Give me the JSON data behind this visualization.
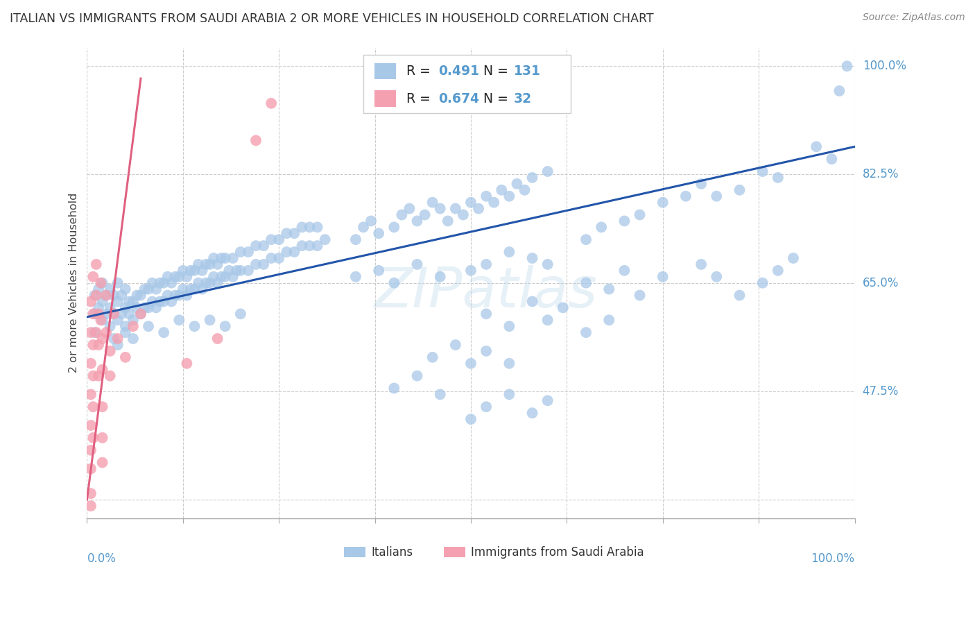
{
  "title": "ITALIAN VS IMMIGRANTS FROM SAUDI ARABIA 2 OR MORE VEHICLES IN HOUSEHOLD CORRELATION CHART",
  "source": "Source: ZipAtlas.com",
  "ylabel": "2 or more Vehicles in Household",
  "ytick_vals": [
    0.3,
    0.475,
    0.65,
    0.825,
    1.0
  ],
  "ytick_labels": [
    "",
    "47.5%",
    "65.0%",
    "82.5%",
    "100.0%"
  ],
  "xlim": [
    0.0,
    1.0
  ],
  "ylim": [
    0.27,
    1.03
  ],
  "watermark": "ZIPatlas",
  "legend_label1": "Italians",
  "legend_label2": "Immigrants from Saudi Arabia",
  "blue_color": "#a8c8e8",
  "blue_line_color": "#2255aa",
  "pink_color": "#f4a0b0",
  "pink_line_color": "#e06080",
  "background_color": "#ffffff",
  "grid_color": "#cccccc",
  "title_color": "#333333",
  "axis_label_color": "#5599cc",
  "blue_line": [
    0.0,
    1.0,
    0.595,
    0.87
  ],
  "pink_line": [
    0.0,
    0.07,
    0.3,
    0.98
  ],
  "blue_dots": [
    [
      0.01,
      0.6
    ],
    [
      0.01,
      0.63
    ],
    [
      0.01,
      0.57
    ],
    [
      0.015,
      0.61
    ],
    [
      0.015,
      0.64
    ],
    [
      0.02,
      0.59
    ],
    [
      0.02,
      0.62
    ],
    [
      0.02,
      0.65
    ],
    [
      0.025,
      0.6
    ],
    [
      0.025,
      0.63
    ],
    [
      0.03,
      0.58
    ],
    [
      0.03,
      0.61
    ],
    [
      0.03,
      0.64
    ],
    [
      0.035,
      0.6
    ],
    [
      0.035,
      0.63
    ],
    [
      0.04,
      0.59
    ],
    [
      0.04,
      0.62
    ],
    [
      0.04,
      0.65
    ],
    [
      0.045,
      0.6
    ],
    [
      0.045,
      0.63
    ],
    [
      0.05,
      0.58
    ],
    [
      0.05,
      0.61
    ],
    [
      0.05,
      0.64
    ],
    [
      0.055,
      0.6
    ],
    [
      0.055,
      0.62
    ],
    [
      0.06,
      0.59
    ],
    [
      0.06,
      0.62
    ],
    [
      0.065,
      0.61
    ],
    [
      0.065,
      0.63
    ],
    [
      0.07,
      0.6
    ],
    [
      0.07,
      0.63
    ],
    [
      0.075,
      0.61
    ],
    [
      0.075,
      0.64
    ],
    [
      0.08,
      0.61
    ],
    [
      0.08,
      0.64
    ],
    [
      0.085,
      0.62
    ],
    [
      0.085,
      0.65
    ],
    [
      0.09,
      0.61
    ],
    [
      0.09,
      0.64
    ],
    [
      0.095,
      0.62
    ],
    [
      0.095,
      0.65
    ],
    [
      0.1,
      0.62
    ],
    [
      0.1,
      0.65
    ],
    [
      0.105,
      0.63
    ],
    [
      0.105,
      0.66
    ],
    [
      0.11,
      0.62
    ],
    [
      0.11,
      0.65
    ],
    [
      0.115,
      0.63
    ],
    [
      0.115,
      0.66
    ],
    [
      0.12,
      0.63
    ],
    [
      0.12,
      0.66
    ],
    [
      0.125,
      0.64
    ],
    [
      0.125,
      0.67
    ],
    [
      0.13,
      0.63
    ],
    [
      0.13,
      0.66
    ],
    [
      0.135,
      0.64
    ],
    [
      0.135,
      0.67
    ],
    [
      0.14,
      0.64
    ],
    [
      0.14,
      0.67
    ],
    [
      0.145,
      0.65
    ],
    [
      0.145,
      0.68
    ],
    [
      0.15,
      0.64
    ],
    [
      0.15,
      0.67
    ],
    [
      0.155,
      0.65
    ],
    [
      0.155,
      0.68
    ],
    [
      0.16,
      0.65
    ],
    [
      0.16,
      0.68
    ],
    [
      0.165,
      0.66
    ],
    [
      0.165,
      0.69
    ],
    [
      0.17,
      0.65
    ],
    [
      0.17,
      0.68
    ],
    [
      0.175,
      0.66
    ],
    [
      0.175,
      0.69
    ],
    [
      0.18,
      0.66
    ],
    [
      0.18,
      0.69
    ],
    [
      0.185,
      0.67
    ],
    [
      0.19,
      0.66
    ],
    [
      0.19,
      0.69
    ],
    [
      0.195,
      0.67
    ],
    [
      0.2,
      0.67
    ],
    [
      0.2,
      0.7
    ],
    [
      0.21,
      0.67
    ],
    [
      0.21,
      0.7
    ],
    [
      0.22,
      0.68
    ],
    [
      0.22,
      0.71
    ],
    [
      0.23,
      0.68
    ],
    [
      0.23,
      0.71
    ],
    [
      0.24,
      0.69
    ],
    [
      0.24,
      0.72
    ],
    [
      0.25,
      0.69
    ],
    [
      0.25,
      0.72
    ],
    [
      0.26,
      0.7
    ],
    [
      0.26,
      0.73
    ],
    [
      0.27,
      0.7
    ],
    [
      0.27,
      0.73
    ],
    [
      0.28,
      0.71
    ],
    [
      0.28,
      0.74
    ],
    [
      0.29,
      0.71
    ],
    [
      0.29,
      0.74
    ],
    [
      0.3,
      0.71
    ],
    [
      0.3,
      0.74
    ],
    [
      0.31,
      0.72
    ],
    [
      0.035,
      0.56
    ],
    [
      0.04,
      0.55
    ],
    [
      0.05,
      0.57
    ],
    [
      0.06,
      0.56
    ],
    [
      0.08,
      0.58
    ],
    [
      0.1,
      0.57
    ],
    [
      0.12,
      0.59
    ],
    [
      0.14,
      0.58
    ],
    [
      0.16,
      0.59
    ],
    [
      0.18,
      0.58
    ],
    [
      0.2,
      0.6
    ],
    [
      0.35,
      0.72
    ],
    [
      0.36,
      0.74
    ],
    [
      0.37,
      0.75
    ],
    [
      0.38,
      0.73
    ],
    [
      0.4,
      0.74
    ],
    [
      0.41,
      0.76
    ],
    [
      0.42,
      0.77
    ],
    [
      0.43,
      0.75
    ],
    [
      0.44,
      0.76
    ],
    [
      0.45,
      0.78
    ],
    [
      0.46,
      0.77
    ],
    [
      0.47,
      0.75
    ],
    [
      0.48,
      0.77
    ],
    [
      0.49,
      0.76
    ],
    [
      0.5,
      0.78
    ],
    [
      0.51,
      0.77
    ],
    [
      0.52,
      0.79
    ],
    [
      0.53,
      0.78
    ],
    [
      0.54,
      0.8
    ],
    [
      0.55,
      0.79
    ],
    [
      0.56,
      0.81
    ],
    [
      0.57,
      0.8
    ],
    [
      0.58,
      0.82
    ],
    [
      0.6,
      0.83
    ],
    [
      0.35,
      0.66
    ],
    [
      0.38,
      0.67
    ],
    [
      0.4,
      0.65
    ],
    [
      0.43,
      0.68
    ],
    [
      0.46,
      0.66
    ],
    [
      0.5,
      0.67
    ],
    [
      0.52,
      0.68
    ],
    [
      0.55,
      0.7
    ],
    [
      0.58,
      0.69
    ],
    [
      0.6,
      0.68
    ],
    [
      0.65,
      0.72
    ],
    [
      0.67,
      0.74
    ],
    [
      0.7,
      0.75
    ],
    [
      0.72,
      0.76
    ],
    [
      0.75,
      0.78
    ],
    [
      0.78,
      0.79
    ],
    [
      0.8,
      0.81
    ],
    [
      0.82,
      0.79
    ],
    [
      0.85,
      0.8
    ],
    [
      0.88,
      0.83
    ],
    [
      0.9,
      0.82
    ],
    [
      0.65,
      0.65
    ],
    [
      0.68,
      0.64
    ],
    [
      0.7,
      0.67
    ],
    [
      0.72,
      0.63
    ],
    [
      0.75,
      0.66
    ],
    [
      0.8,
      0.68
    ],
    [
      0.82,
      0.66
    ],
    [
      0.85,
      0.63
    ],
    [
      0.88,
      0.65
    ],
    [
      0.9,
      0.67
    ],
    [
      0.92,
      0.69
    ],
    [
      0.52,
      0.6
    ],
    [
      0.55,
      0.58
    ],
    [
      0.58,
      0.62
    ],
    [
      0.6,
      0.59
    ],
    [
      0.62,
      0.61
    ],
    [
      0.65,
      0.57
    ],
    [
      0.68,
      0.59
    ],
    [
      0.45,
      0.53
    ],
    [
      0.48,
      0.55
    ],
    [
      0.5,
      0.52
    ],
    [
      0.52,
      0.54
    ],
    [
      0.55,
      0.52
    ],
    [
      0.4,
      0.48
    ],
    [
      0.43,
      0.5
    ],
    [
      0.46,
      0.47
    ],
    [
      0.5,
      0.43
    ],
    [
      0.52,
      0.45
    ],
    [
      0.55,
      0.47
    ],
    [
      0.58,
      0.44
    ],
    [
      0.6,
      0.46
    ],
    [
      0.95,
      0.87
    ],
    [
      0.97,
      0.85
    ],
    [
      0.99,
      1.0
    ],
    [
      0.98,
      0.96
    ]
  ],
  "pink_dots": [
    [
      0.005,
      0.62
    ],
    [
      0.005,
      0.57
    ],
    [
      0.005,
      0.52
    ],
    [
      0.005,
      0.47
    ],
    [
      0.005,
      0.42
    ],
    [
      0.005,
      0.38
    ],
    [
      0.005,
      0.35
    ],
    [
      0.005,
      0.31
    ],
    [
      0.008,
      0.66
    ],
    [
      0.008,
      0.6
    ],
    [
      0.008,
      0.55
    ],
    [
      0.008,
      0.5
    ],
    [
      0.008,
      0.45
    ],
    [
      0.008,
      0.4
    ],
    [
      0.012,
      0.68
    ],
    [
      0.012,
      0.63
    ],
    [
      0.012,
      0.57
    ],
    [
      0.015,
      0.6
    ],
    [
      0.015,
      0.55
    ],
    [
      0.015,
      0.5
    ],
    [
      0.018,
      0.65
    ],
    [
      0.018,
      0.59
    ],
    [
      0.02,
      0.56
    ],
    [
      0.02,
      0.51
    ],
    [
      0.025,
      0.63
    ],
    [
      0.025,
      0.57
    ],
    [
      0.03,
      0.54
    ],
    [
      0.03,
      0.5
    ],
    [
      0.035,
      0.6
    ],
    [
      0.04,
      0.56
    ],
    [
      0.05,
      0.53
    ],
    [
      0.06,
      0.58
    ],
    [
      0.07,
      0.6
    ],
    [
      0.02,
      0.45
    ],
    [
      0.02,
      0.4
    ],
    [
      0.02,
      0.36
    ],
    [
      0.005,
      0.29
    ],
    [
      0.13,
      0.52
    ],
    [
      0.17,
      0.56
    ],
    [
      0.22,
      0.88
    ],
    [
      0.24,
      0.94
    ]
  ]
}
